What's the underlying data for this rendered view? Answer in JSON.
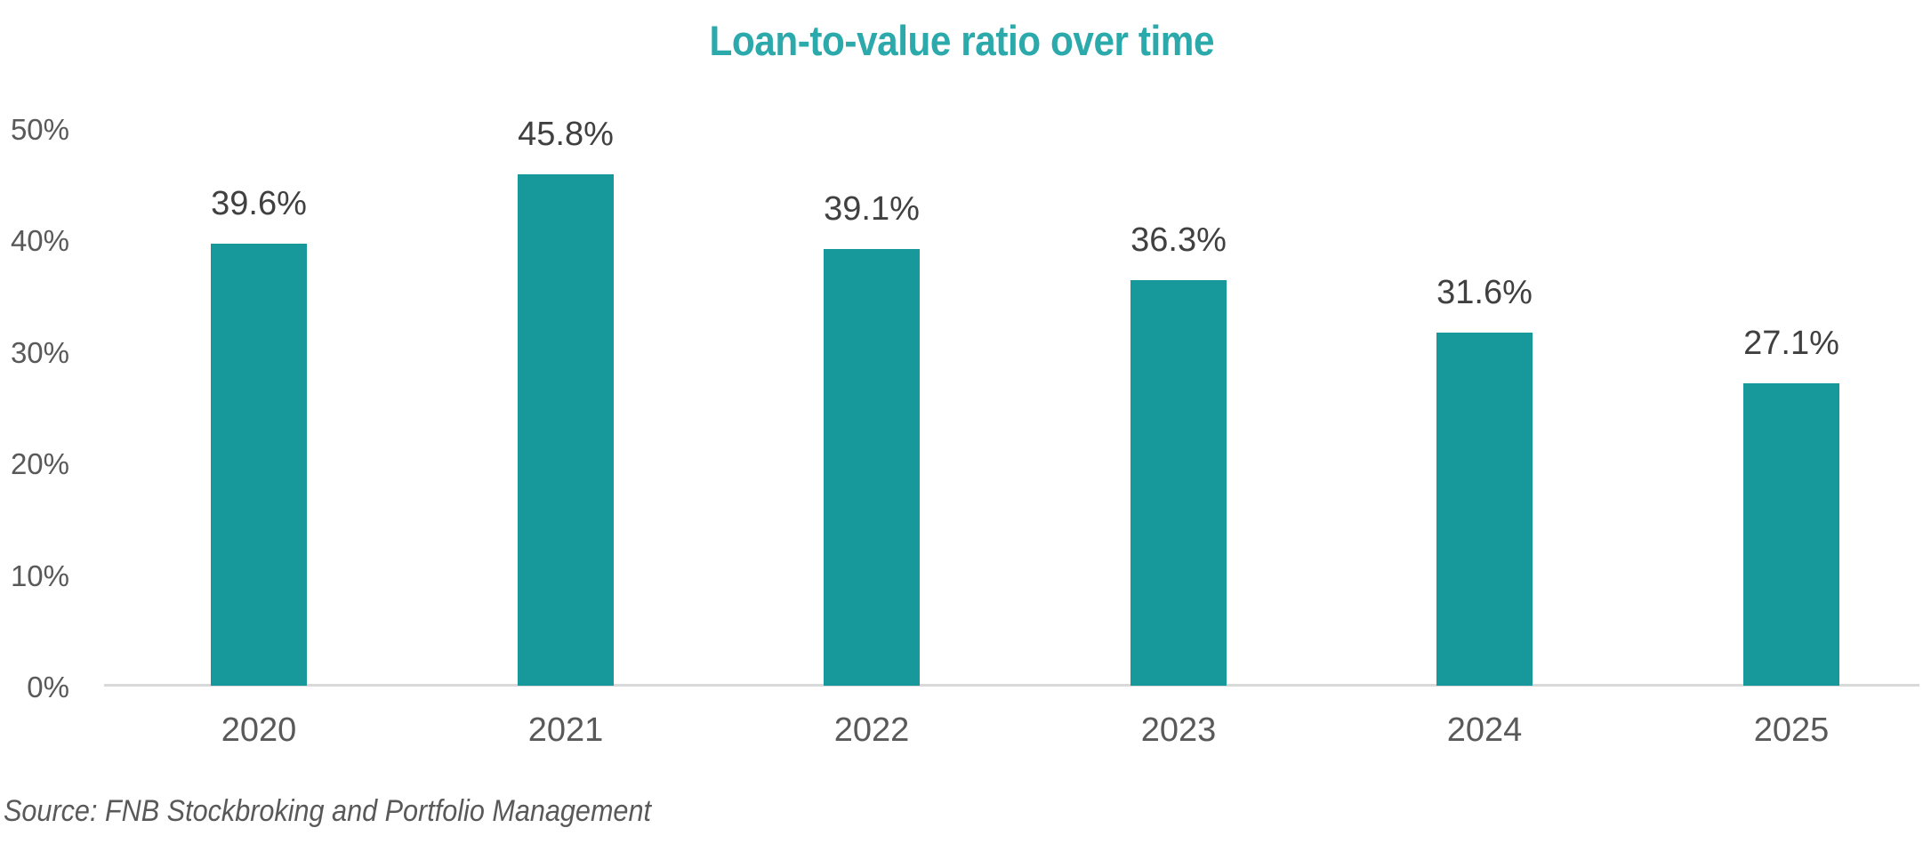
{
  "chart_data": {
    "type": "bar",
    "title": "Loan-to-value ratio over time",
    "categories": [
      "2020",
      "2021",
      "2022",
      "2023",
      "2024",
      "2025"
    ],
    "values": [
      39.6,
      45.8,
      39.1,
      36.3,
      31.6,
      27.1
    ],
    "value_labels": [
      "39.6%",
      "45.8%",
      "39.1%",
      "36.3%",
      "31.6%",
      "27.1%"
    ],
    "xlabel": "",
    "ylabel": "",
    "y_ticks": [
      "0%",
      "10%",
      "20%",
      "30%",
      "40%",
      "50%"
    ],
    "y_tick_values": [
      0,
      10,
      20,
      30,
      40,
      50
    ],
    "ylim": [
      0,
      50
    ],
    "grid": false,
    "legend": "none",
    "data_labels_shown": true,
    "source": "Source: FNB Stockbroking and Portfolio Management",
    "colors": {
      "bar": "#17999B",
      "title": "#2BA9AB",
      "data_label": "#404040",
      "axis_label": "#595959",
      "axis_line": "#D9D9D9",
      "source_text": "#595959"
    }
  }
}
